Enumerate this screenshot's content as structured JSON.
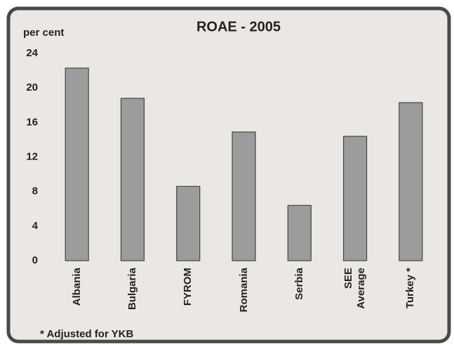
{
  "chart_data": {
    "type": "bar",
    "title": "ROAE - 2005",
    "y_label": "per cent",
    "categories": [
      "Albania",
      "Bulgaria",
      "FYROM",
      "Romania",
      "Serbia",
      "SEE Average",
      "Turkey *"
    ],
    "values": [
      22.3,
      18.8,
      8.6,
      14.9,
      6.4,
      14.4,
      18.3
    ],
    "color": "#9c9c9c",
    "ylim": [
      0,
      24
    ],
    "yticks": [
      0,
      4,
      8,
      12,
      16,
      20,
      24
    ],
    "footnote": "* Adjusted for YKB"
  }
}
